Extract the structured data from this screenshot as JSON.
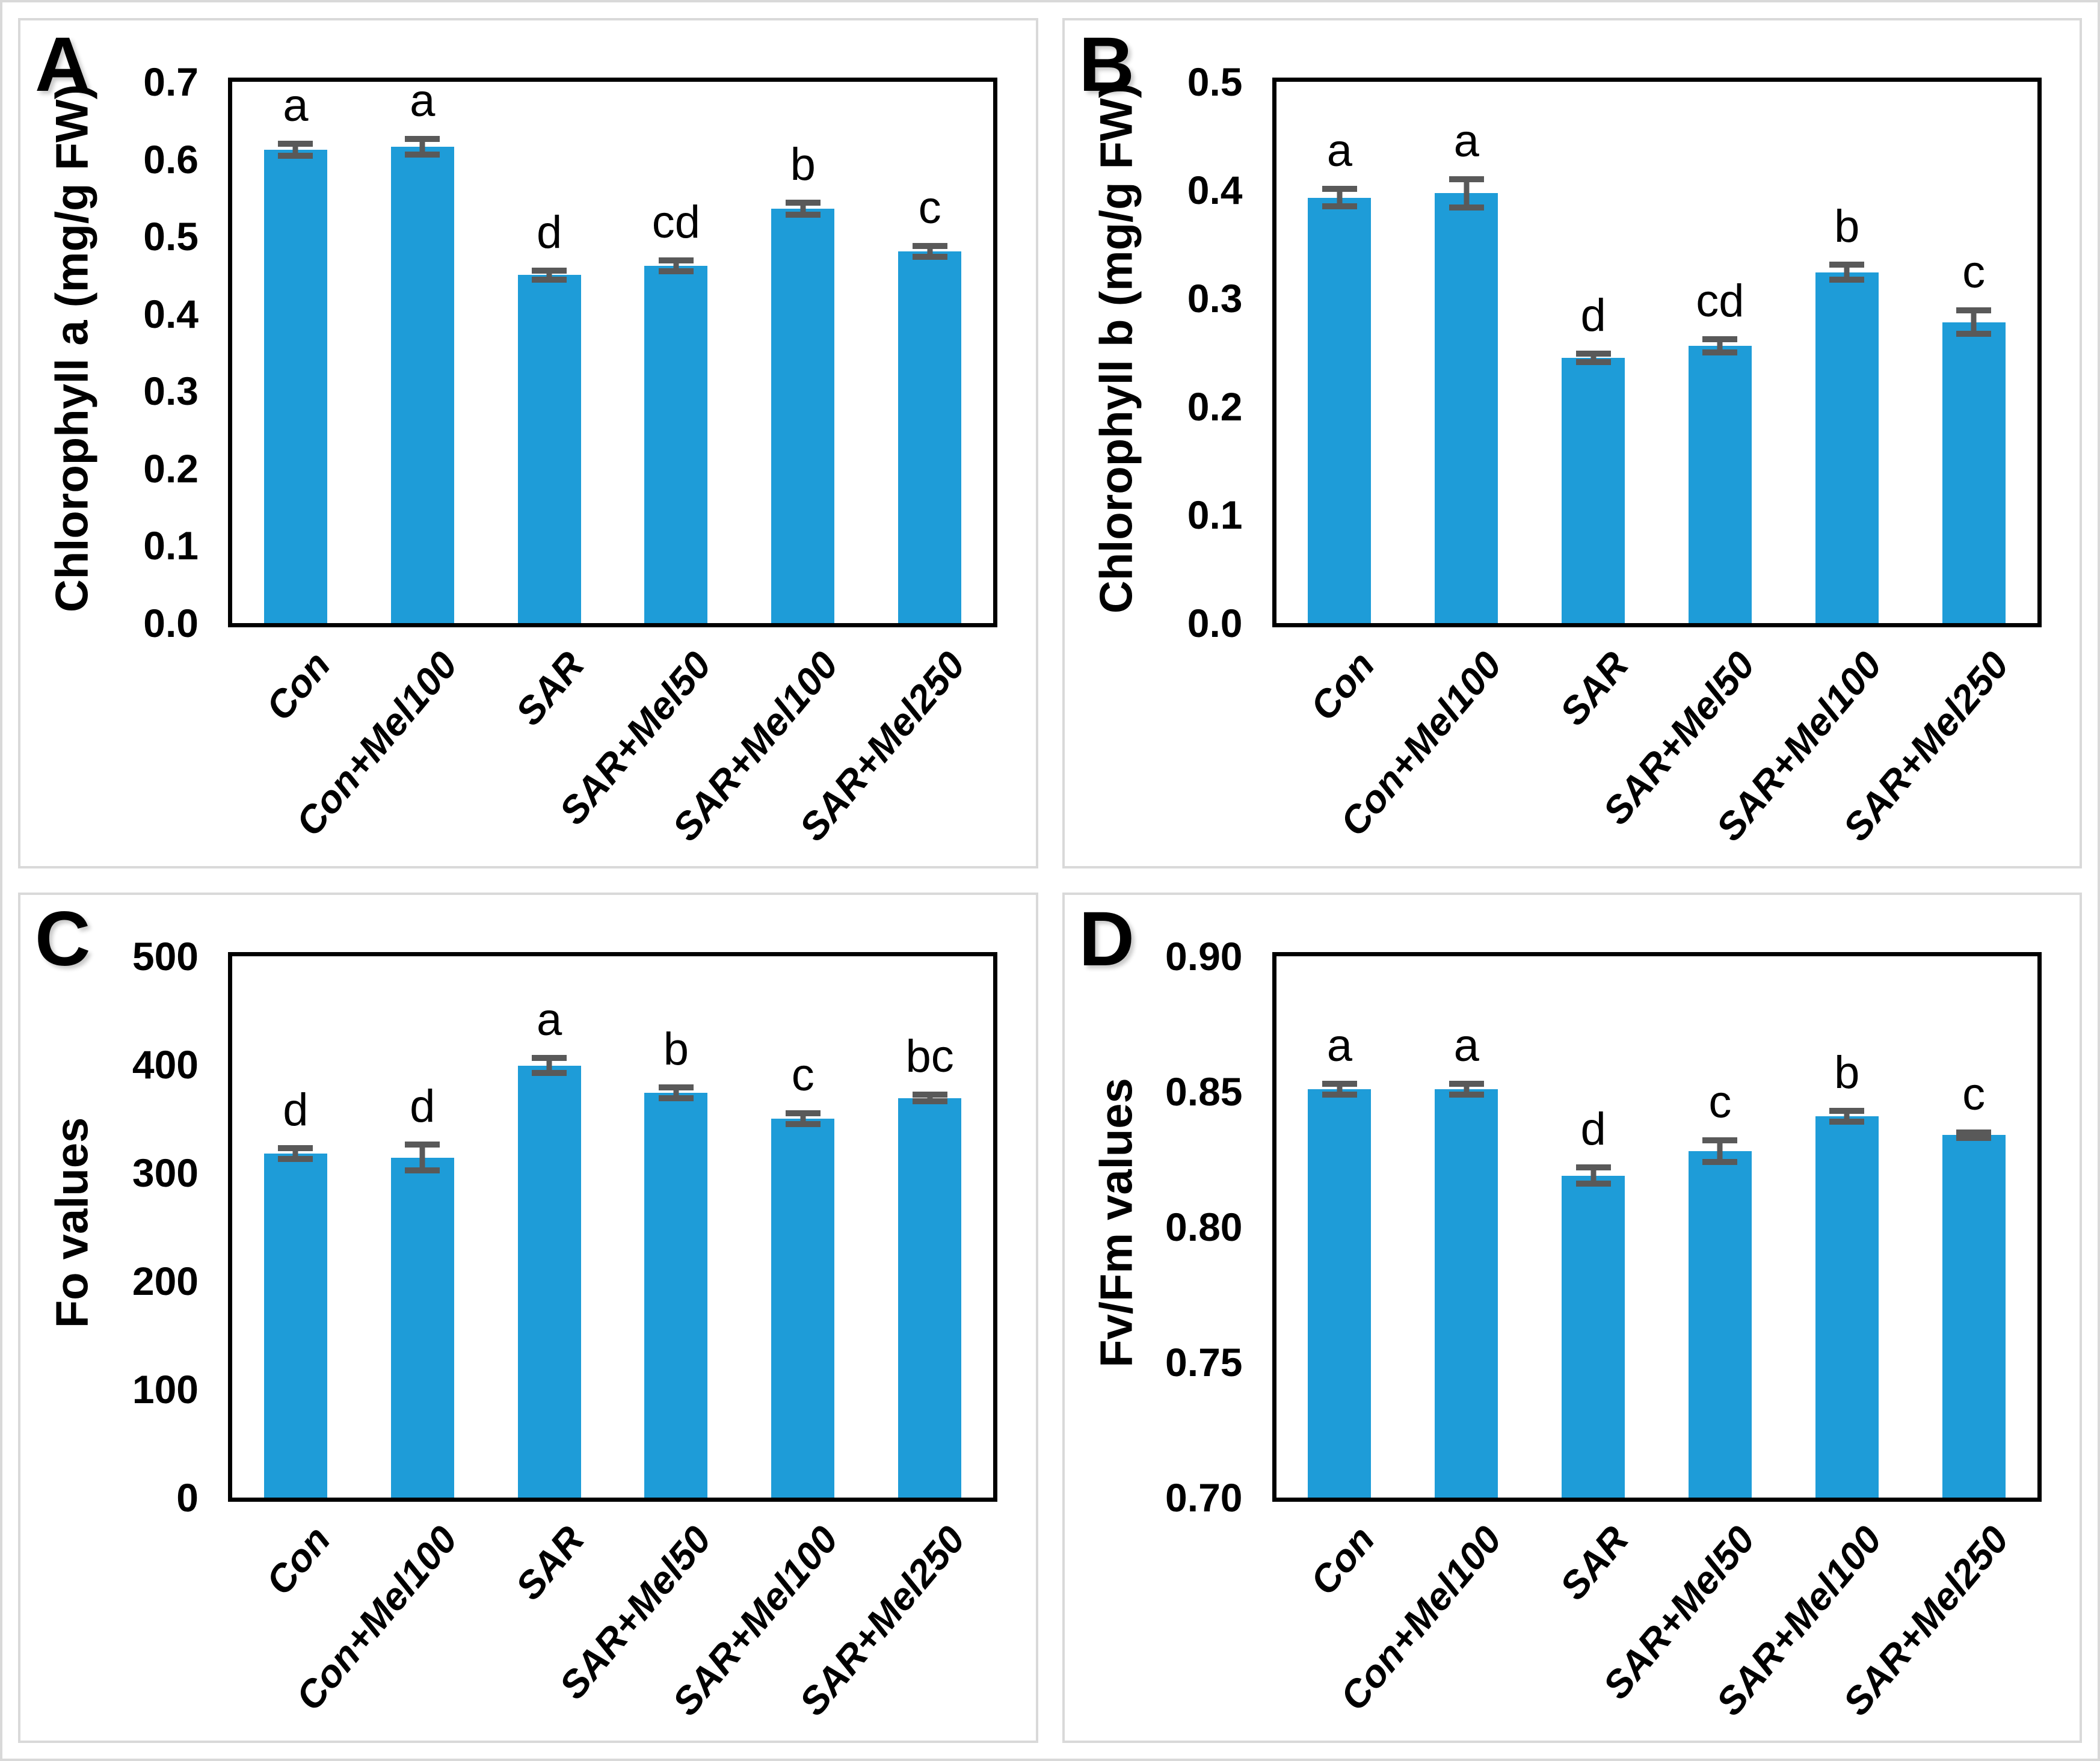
{
  "figure_title": "",
  "colors": {
    "bar_fill": "#1E9CD8",
    "error_bar": "#595959",
    "plot_frame": "#000000",
    "panel_border": "#D9D9D9",
    "text": "#000000"
  },
  "chart_data": [
    {
      "type": "bar",
      "panel_label": "A",
      "ylabel": "Chlorophyll a (mg/g FW)",
      "xlabel": "",
      "categories": [
        "Con",
        "Con+Mel100",
        "SAR",
        "SAR+Mel50",
        "SAR+Mel100",
        "SAR+Mel250"
      ],
      "values": [
        0.612,
        0.616,
        0.45,
        0.462,
        0.536,
        0.481
      ],
      "errors": [
        0.008,
        0.01,
        0.006,
        0.007,
        0.008,
        0.007
      ],
      "sig_letters": [
        "a",
        "a",
        "d",
        "cd",
        "b",
        "c"
      ],
      "ylim": [
        0,
        0.7
      ],
      "yticks": [
        "0.0",
        "0.1",
        "0.2",
        "0.3",
        "0.4",
        "0.5",
        "0.6",
        "0.7"
      ],
      "grid": false,
      "legend": null
    },
    {
      "type": "bar",
      "panel_label": "B",
      "ylabel": "Chlorophyll b (mg/g FW)",
      "xlabel": "",
      "categories": [
        "Con",
        "Con+Mel100",
        "SAR",
        "SAR+Mel50",
        "SAR+Mel100",
        "SAR+Mel250"
      ],
      "values": [
        0.393,
        0.397,
        0.245,
        0.256,
        0.324,
        0.278
      ],
      "errors": [
        0.008,
        0.013,
        0.004,
        0.006,
        0.007,
        0.011
      ],
      "sig_letters": [
        "a",
        "a",
        "d",
        "cd",
        "b",
        "c"
      ],
      "ylim": [
        0,
        0.5
      ],
      "yticks": [
        "0.0",
        "0.1",
        "0.2",
        "0.3",
        "0.4",
        "0.5"
      ],
      "grid": false,
      "legend": null
    },
    {
      "type": "bar",
      "panel_label": "C",
      "ylabel": "Fo values",
      "xlabel": "",
      "categories": [
        "Con",
        "Con+Mel100",
        "SAR",
        "SAR+Mel50",
        "SAR+Mel100",
        "SAR+Mel250"
      ],
      "values": [
        318,
        314,
        399,
        374,
        350,
        369
      ],
      "errors": [
        5,
        12,
        7,
        5,
        5,
        3
      ],
      "sig_letters": [
        "d",
        "d",
        "a",
        "b",
        "c",
        "bc"
      ],
      "ylim": [
        0,
        500
      ],
      "yticks": [
        "0",
        "100",
        "200",
        "300",
        "400",
        "500"
      ],
      "grid": false,
      "legend": null
    },
    {
      "type": "bar",
      "panel_label": "D",
      "ylabel": "Fv/Fm values",
      "xlabel": "",
      "categories": [
        "Con",
        "Con+Mel100",
        "SAR",
        "SAR+Mel50",
        "SAR+Mel100",
        "SAR+Mel250"
      ],
      "values": [
        0.851,
        0.851,
        0.819,
        0.828,
        0.841,
        0.834
      ],
      "errors": [
        0.002,
        0.002,
        0.003,
        0.004,
        0.002,
        0.001
      ],
      "sig_letters": [
        "a",
        "a",
        "d",
        "c",
        "b",
        "c"
      ],
      "ylim": [
        0.7,
        0.9
      ],
      "yticks": [
        "0.70",
        "0.75",
        "0.80",
        "0.85",
        "0.90"
      ],
      "grid": false,
      "legend": null
    }
  ]
}
